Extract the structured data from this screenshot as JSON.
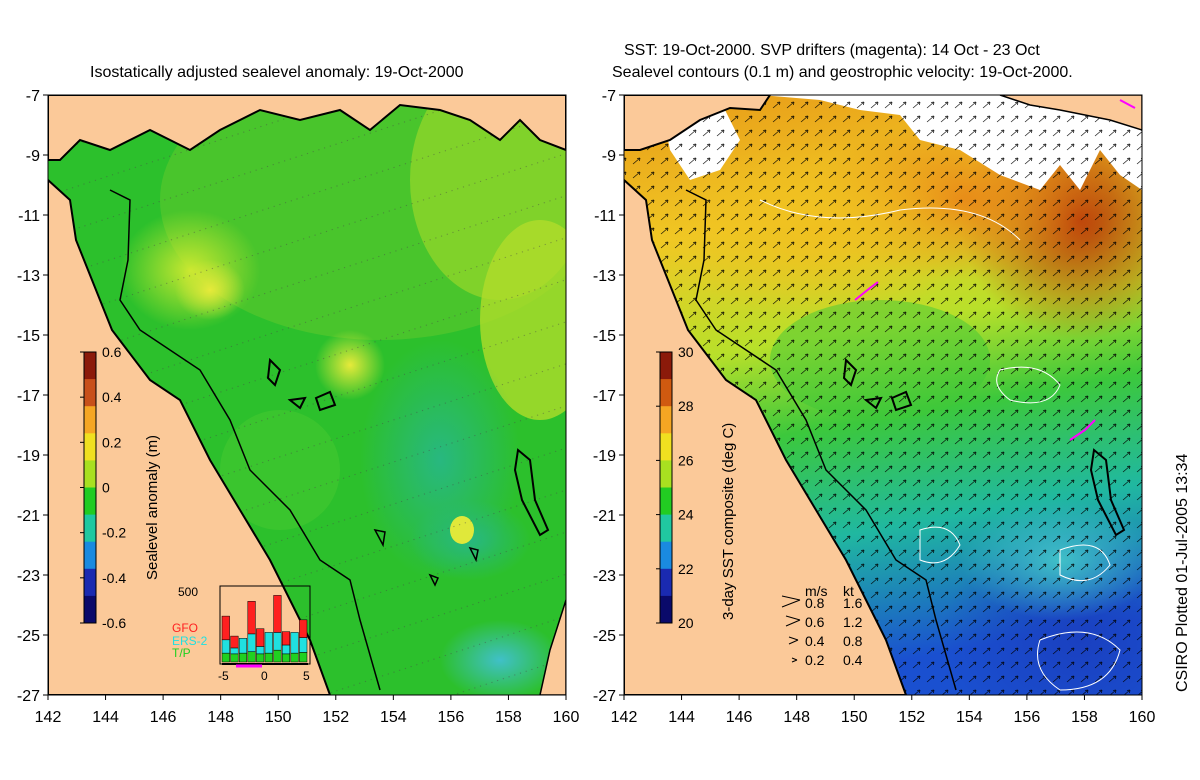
{
  "left_panel": {
    "title": "Isostatically adjusted sealevel anomaly: 19-Oct-2000",
    "colorbar_label": "Sealevel anomaly (m)",
    "colorbar_ticks": [
      "0.6",
      "0.4",
      "0.2",
      "0",
      "-0.2",
      "-0.4",
      "-0.6"
    ],
    "colorbar_colors": [
      "#8b1a0a",
      "#c8501a",
      "#f5a623",
      "#f0e020",
      "#a8e020",
      "#22cc22",
      "#20c8a0",
      "#1a8ae0",
      "#1a2ab0",
      "#0a0a6a"
    ],
    "inset": {
      "ymax_label": "500",
      "legend": [
        {
          "name": "GFO",
          "color": "#ff2020"
        },
        {
          "name": "ERS-2",
          "color": "#20e0e0"
        },
        {
          "name": "T/P",
          "color": "#20d020"
        }
      ],
      "x_ticks": [
        "-5",
        "0",
        "5"
      ],
      "bars": [
        {
          "tp": 60,
          "ers": 90,
          "gfo": 160
        },
        {
          "tp": 55,
          "ers": 40,
          "gfo": 80
        },
        {
          "tp": 60,
          "ers": 100,
          "gfo": 0
        },
        {
          "tp": 70,
          "ers": 120,
          "gfo": 220
        },
        {
          "tp": 55,
          "ers": 50,
          "gfo": 120
        },
        {
          "tp": 60,
          "ers": 140,
          "gfo": 0
        },
        {
          "tp": 80,
          "ers": 120,
          "gfo": 250
        },
        {
          "tp": 55,
          "ers": 60,
          "gfo": 90
        },
        {
          "tp": 60,
          "ers": 140,
          "gfo": 0
        },
        {
          "tp": 65,
          "ers": 100,
          "gfo": 120
        }
      ]
    }
  },
  "right_panel": {
    "title_line1": "SST: 19-Oct-2000. SVP drifters (magenta): 14 Oct - 23 Oct",
    "title_line2": "Sealevel contours (0.1 m) and geostrophic velocity: 19-Oct-2000.",
    "colorbar_label": "3-day SST composite (deg C)",
    "colorbar_ticks": [
      "30",
      "28",
      "26",
      "24",
      "22",
      "20"
    ],
    "colorbar_colors": [
      "#8b1a0a",
      "#d05a10",
      "#f5a623",
      "#f0e020",
      "#a8e020",
      "#22cc22",
      "#20c8a0",
      "#1a8ae0",
      "#1a2ab0",
      "#0a0a6a"
    ],
    "velocity_legend": {
      "header_ms": "m/s",
      "header_kt": "kt",
      "rows": [
        {
          "ms": "0.8",
          "kt": "1.6"
        },
        {
          "ms": "0.6",
          "kt": "1.2"
        },
        {
          "ms": "0.4",
          "kt": "0.8"
        },
        {
          "ms": "0.2",
          "kt": "0.4"
        }
      ]
    }
  },
  "axes": {
    "y_ticks": [
      "-7",
      "-9",
      "-11",
      "-13",
      "-15",
      "-17",
      "-19",
      "-21",
      "-23",
      "-25",
      "-27"
    ],
    "x_ticks": [
      "142",
      "144",
      "146",
      "148",
      "150",
      "152",
      "154",
      "156",
      "158",
      "160"
    ]
  },
  "credit": "CSIRO Plotted 01-Jul-2005 13:34",
  "colors": {
    "land": "#fbc999",
    "ocean_green": "#2cc02c",
    "ocean_light": "#66d030",
    "ocean_yellow": "#b8e02a",
    "sst_orange": "#f0a020",
    "sst_red": "#c04a10",
    "cloud": "#ffffff",
    "coast": "#000000"
  }
}
